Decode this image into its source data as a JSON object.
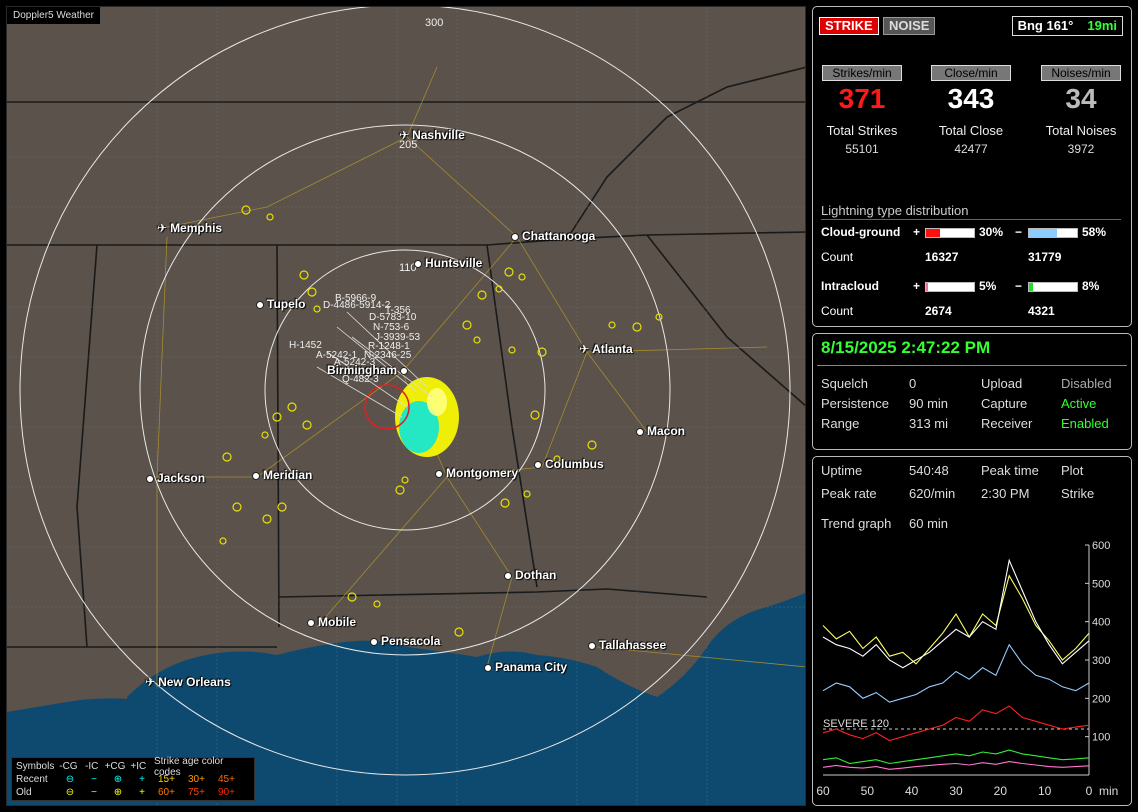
{
  "app": {
    "title": "Doppler5 Weather"
  },
  "map": {
    "ring_labels": [
      "300",
      "205",
      "110"
    ],
    "cities": [
      {
        "name": "Nashville",
        "airport": true
      },
      {
        "name": "Memphis",
        "airport": true
      },
      {
        "name": "Chattanooga",
        "airport": false
      },
      {
        "name": "Huntsville",
        "airport": false
      },
      {
        "name": "Tupelo",
        "airport": false
      },
      {
        "name": "Atlanta",
        "airport": true
      },
      {
        "name": "Birmingham",
        "airport": false
      },
      {
        "name": "Macon",
        "airport": false
      },
      {
        "name": "Jackson",
        "airport": false
      },
      {
        "name": "Meridian",
        "airport": false
      },
      {
        "name": "Montgomery",
        "airport": false
      },
      {
        "name": "Columbus",
        "airport": false
      },
      {
        "name": "Dothan",
        "airport": false
      },
      {
        "name": "Mobile",
        "airport": false
      },
      {
        "name": "Pensacola",
        "airport": false
      },
      {
        "name": "Tallahassee",
        "airport": false
      },
      {
        "name": "Panama City",
        "airport": false
      },
      {
        "name": "New Orleans",
        "airport": true
      }
    ],
    "storm_labels": [
      "B-5966-9",
      "D-4486-5914-2",
      "T-356",
      "D-5783-10",
      "N-753-6",
      "J-3939-53",
      "R-1248-1",
      "H-1452",
      "A-5242-1",
      "N-2346-25",
      "A-5242-3",
      "Q-482-3"
    ],
    "legend": {
      "header": [
        "Symbols",
        "-CG",
        "-IC",
        "+CG",
        "+IC",
        "Strike age color codes"
      ],
      "recent_label": "Recent",
      "old_label": "Old",
      "recent_ages": [
        "15+",
        "30+",
        "45+"
      ],
      "old_ages": [
        "60+",
        "75+",
        "90+"
      ],
      "recent_colors": [
        "#ffd000",
        "#ff9900",
        "#ff6600"
      ],
      "old_colors": [
        "#ff7700",
        "#ff4400",
        "#ff2200"
      ]
    }
  },
  "status": {
    "strike_label": "STRIKE",
    "noise_label": "NOISE",
    "bearing": "Bng 161°",
    "distance": "19mi",
    "stats": [
      {
        "button": "Strikes/min",
        "value": "371",
        "color": "#ff1a1a",
        "total_label": "Total Strikes",
        "total": "55101"
      },
      {
        "button": "Close/min",
        "value": "343",
        "color": "#ffffff",
        "total_label": "Total Close",
        "total": "42477"
      },
      {
        "button": "Noises/min",
        "value": "34",
        "color": "#bbbbbb",
        "total_label": "Total Noises",
        "total": "3972"
      }
    ],
    "distribution": {
      "title": "Lightning type distribution",
      "cloud_ground_label": "Cloud-ground",
      "intracloud_label": "Intracloud",
      "count_label": "Count",
      "plus": "+",
      "minus": "−",
      "cg_pos_pct": "30%",
      "cg_pos_frac": 0.3,
      "cg_pos_color": "#ff1010",
      "cg_neg_pct": "58%",
      "cg_neg_frac": 0.58,
      "cg_neg_color": "#8ecbff",
      "cg_pos_count": "16327",
      "cg_neg_count": "31779",
      "ic_pos_pct": "5%",
      "ic_pos_frac": 0.05,
      "ic_pos_color": "#ff66aa",
      "ic_neg_pct": "8%",
      "ic_neg_frac": 0.08,
      "ic_neg_color": "#22dd22",
      "ic_pos_count": "2674",
      "ic_neg_count": "4321"
    }
  },
  "settings": {
    "datetime": "8/15/2025 2:47:22 PM",
    "squelch_label": "Squelch",
    "squelch": "0",
    "persistence_label": "Persistence",
    "persistence": "90 min",
    "range_label": "Range",
    "range": "313 mi",
    "upload_label": "Upload",
    "upload": "Disabled",
    "capture_label": "Capture",
    "capture": "Active",
    "receiver_label": "Receiver",
    "receiver": "Enabled"
  },
  "trend": {
    "uptime_label": "Uptime",
    "uptime": "540:48",
    "peak_time_label": "Peak time",
    "peak_time": "2:30 PM",
    "plot_label": "Plot",
    "plot": "Strike",
    "peak_rate_label": "Peak rate",
    "peak_rate": "620/min",
    "graph_label": "Trend graph",
    "graph_span": "60 min",
    "severe_label": "SEVERE 120",
    "y_ticks": [
      "600",
      "500",
      "400",
      "300",
      "200",
      "100"
    ],
    "x_ticks": [
      "60",
      "50",
      "40",
      "30",
      "20",
      "10",
      "0"
    ],
    "x_unit": "min"
  },
  "chart_data": {
    "type": "line",
    "title": "",
    "xlabel": "min",
    "ylabel": "",
    "xlim": [
      60,
      0
    ],
    "ylim": [
      0,
      600
    ],
    "severe_threshold": 120,
    "x": [
      60,
      57,
      54,
      51,
      48,
      45,
      42,
      39,
      36,
      33,
      30,
      27,
      24,
      21,
      18,
      15,
      12,
      9,
      6,
      3,
      0
    ],
    "series": [
      {
        "color": "#ffff66",
        "values": [
          390,
          355,
          375,
          330,
          360,
          310,
          320,
          290,
          330,
          370,
          420,
          360,
          420,
          390,
          520,
          460,
          390,
          350,
          300,
          330,
          370
        ]
      },
      {
        "color": "#ffffff",
        "values": [
          360,
          340,
          330,
          310,
          340,
          300,
          280,
          300,
          320,
          350,
          380,
          360,
          400,
          380,
          560,
          480,
          400,
          340,
          290,
          320,
          350
        ]
      },
      {
        "color": "#99ccff",
        "values": [
          220,
          240,
          230,
          200,
          215,
          190,
          200,
          210,
          230,
          240,
          270,
          250,
          280,
          260,
          340,
          290,
          260,
          250,
          230,
          220,
          240
        ]
      },
      {
        "color": "#ff2020",
        "values": [
          110,
          120,
          105,
          95,
          110,
          90,
          100,
          110,
          120,
          130,
          150,
          140,
          170,
          160,
          180,
          150,
          140,
          130,
          120,
          125,
          130
        ]
      },
      {
        "color": "#33ee33",
        "values": [
          40,
          45,
          30,
          35,
          40,
          30,
          35,
          40,
          45,
          50,
          55,
          50,
          60,
          55,
          65,
          55,
          50,
          45,
          40,
          42,
          45
        ]
      },
      {
        "color": "#ff77cc",
        "values": [
          20,
          25,
          20,
          18,
          22,
          15,
          18,
          22,
          25,
          28,
          30,
          26,
          32,
          28,
          35,
          30,
          26,
          22,
          20,
          22,
          24
        ]
      }
    ]
  }
}
